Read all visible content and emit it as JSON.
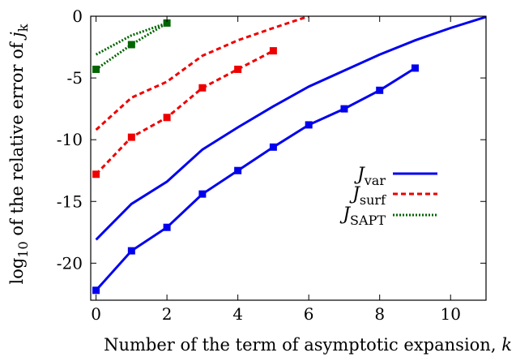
{
  "chart_data": {
    "type": "line",
    "xlabel": "Number of the term of asymptotic expansion, k",
    "xlabel_parts": [
      "Number of the term of asymptotic expansion, ",
      "k"
    ],
    "ylabel_parts": [
      "log",
      "10",
      " of the relative error of ",
      "j",
      "k"
    ],
    "xlim": [
      -0.15,
      11
    ],
    "ylim": [
      -23,
      0
    ],
    "xticks": [
      0,
      2,
      4,
      6,
      8,
      10
    ],
    "yticks": [
      0,
      -5,
      -10,
      -15,
      -20
    ],
    "ytick_labels": [
      "0",
      "-5",
      "-10",
      "-15",
      "-20"
    ],
    "grid": false,
    "legend_position": "middle-right",
    "legend": [
      {
        "main": "J",
        "sub": "var",
        "color": "#0000ee",
        "style": "solid"
      },
      {
        "main": "J",
        "sub": "surf",
        "color": "#ee0000",
        "style": "dashed"
      },
      {
        "main": "J",
        "sub": "SAPT",
        "color": "#006400",
        "style": "dotted"
      }
    ],
    "series": [
      {
        "id": "var-line",
        "color": "#0000ee",
        "style": "solid",
        "markers": false,
        "x": [
          0,
          1,
          2,
          3,
          4,
          5,
          6,
          7,
          8,
          9,
          10,
          11
        ],
        "y": [
          -18.1,
          -15.2,
          -13.4,
          -10.8,
          -9.0,
          -7.3,
          -5.7,
          -4.4,
          -3.1,
          -1.95,
          -0.95,
          -0.05
        ]
      },
      {
        "id": "var-markers",
        "color": "#0000ee",
        "style": "solid",
        "markers": true,
        "x": [
          0,
          1,
          2,
          3,
          4,
          5,
          6,
          7,
          8,
          9
        ],
        "y": [
          -22.2,
          -19.0,
          -17.1,
          -14.4,
          -12.5,
          -10.6,
          -8.8,
          -7.5,
          -6.0,
          -4.2
        ]
      },
      {
        "id": "surf-line",
        "color": "#ee0000",
        "style": "dashed",
        "markers": false,
        "x": [
          0,
          1,
          2,
          3,
          4,
          5,
          6
        ],
        "y": [
          -9.2,
          -6.6,
          -5.3,
          -3.2,
          -1.95,
          -0.95,
          0.0
        ]
      },
      {
        "id": "surf-markers",
        "color": "#ee0000",
        "style": "dashed",
        "markers": true,
        "x": [
          0,
          1,
          2,
          3,
          4,
          5
        ],
        "y": [
          -12.8,
          -9.8,
          -8.2,
          -5.8,
          -4.3,
          -2.8
        ]
      },
      {
        "id": "sapt-line",
        "color": "#006400",
        "style": "dotted",
        "markers": false,
        "x": [
          0,
          1,
          2
        ],
        "y": [
          -3.1,
          -1.55,
          -0.55
        ]
      },
      {
        "id": "sapt-markers",
        "color": "#006400",
        "style": "dotted",
        "markers": true,
        "x": [
          0,
          1,
          2
        ],
        "y": [
          -4.3,
          -2.3,
          -0.55
        ]
      }
    ]
  }
}
